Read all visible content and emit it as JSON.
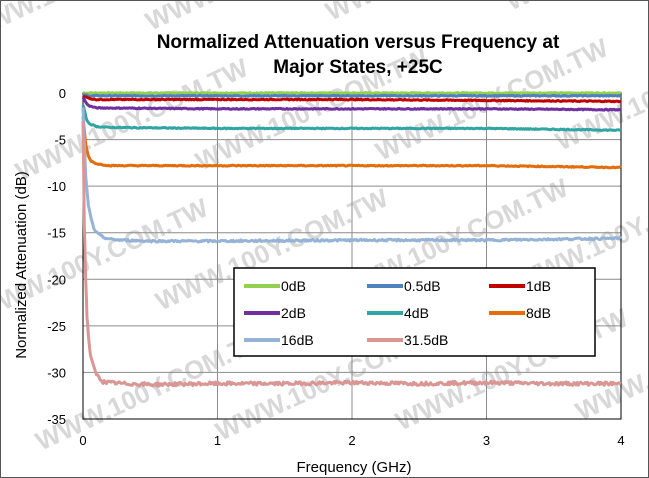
{
  "watermark": "WWW.100Y.COM.TW",
  "chart_data": {
    "type": "line",
    "title_line1": "Normalized Attenuation versus Frequency at",
    "title_line2": "Major States, +25C",
    "xlabel": "Frequency (GHz)",
    "ylabel": "Normalized Attenuation (dB)",
    "xlim": [
      0,
      4
    ],
    "ylim": [
      -35,
      0
    ],
    "xticks": [
      "0",
      "1",
      "2",
      "3",
      "4"
    ],
    "yticks": [
      "0",
      "-5",
      "-10",
      "-15",
      "-20",
      "-25",
      "-30",
      "-35"
    ],
    "grid": true,
    "legend_position": "lower-center",
    "series": [
      {
        "name": "0dB",
        "color": "#92d050",
        "x": [
          0,
          0.05,
          1,
          2,
          3,
          4
        ],
        "y": [
          0,
          0,
          0,
          0,
          0,
          0
        ]
      },
      {
        "name": "0.5dB",
        "color": "#4f81bd",
        "x": [
          0,
          0.05,
          1,
          2,
          3,
          4
        ],
        "y": [
          -0.2,
          -0.3,
          -0.3,
          -0.3,
          -0.3,
          -0.3
        ]
      },
      {
        "name": "1dB",
        "color": "#c00000",
        "x": [
          0,
          0.05,
          0.1,
          1,
          2,
          3,
          4
        ],
        "y": [
          -0.3,
          -0.6,
          -0.7,
          -0.7,
          -0.7,
          -0.8,
          -0.9
        ]
      },
      {
        "name": "2dB",
        "color": "#7030a0",
        "x": [
          0,
          0.03,
          0.05,
          0.1,
          1,
          2,
          3,
          4
        ],
        "y": [
          -0.5,
          -1.2,
          -1.4,
          -1.6,
          -1.7,
          -1.7,
          -1.7,
          -1.8
        ]
      },
      {
        "name": "4dB",
        "color": "#31a5a3",
        "x": [
          0,
          0.03,
          0.05,
          0.1,
          0.2,
          1,
          2,
          3,
          4
        ],
        "y": [
          -1.3,
          -3.0,
          -3.3,
          -3.6,
          -3.7,
          -3.8,
          -3.8,
          -3.8,
          -4.0
        ]
      },
      {
        "name": "8dB",
        "color": "#e46c0a",
        "x": [
          0,
          0.02,
          0.04,
          0.06,
          0.1,
          0.2,
          0.5,
          1,
          2,
          3,
          4
        ],
        "y": [
          -2.5,
          -5.5,
          -6.8,
          -7.3,
          -7.6,
          -7.8,
          -7.8,
          -7.8,
          -7.8,
          -7.8,
          -8.0
        ]
      },
      {
        "name": "16dB",
        "color": "#95b3d7",
        "x": [
          0,
          0.02,
          0.04,
          0.06,
          0.08,
          0.1,
          0.15,
          0.2,
          0.3,
          0.5,
          1,
          2,
          3,
          4
        ],
        "y": [
          -1.5,
          -9,
          -12,
          -13.5,
          -14.5,
          -15.0,
          -15.5,
          -15.7,
          -15.8,
          -15.9,
          -15.9,
          -15.8,
          -15.8,
          -15.6
        ]
      },
      {
        "name": "31.5dB",
        "color": "#d99694",
        "x": [
          0,
          0.01,
          0.02,
          0.03,
          0.04,
          0.05,
          0.06,
          0.08,
          0.1,
          0.12,
          0.15,
          0.2,
          0.3,
          0.5,
          1,
          1.5,
          2,
          2.5,
          3,
          3.5,
          4
        ],
        "y": [
          -3,
          -14,
          -20,
          -24,
          -26,
          -27.5,
          -28.5,
          -29.5,
          -30.2,
          -30.6,
          -31.0,
          -31.1,
          -31.2,
          -31.3,
          -31.2,
          -31.2,
          -31.1,
          -31.2,
          -31.1,
          -31.2,
          -31.2
        ]
      }
    ]
  }
}
